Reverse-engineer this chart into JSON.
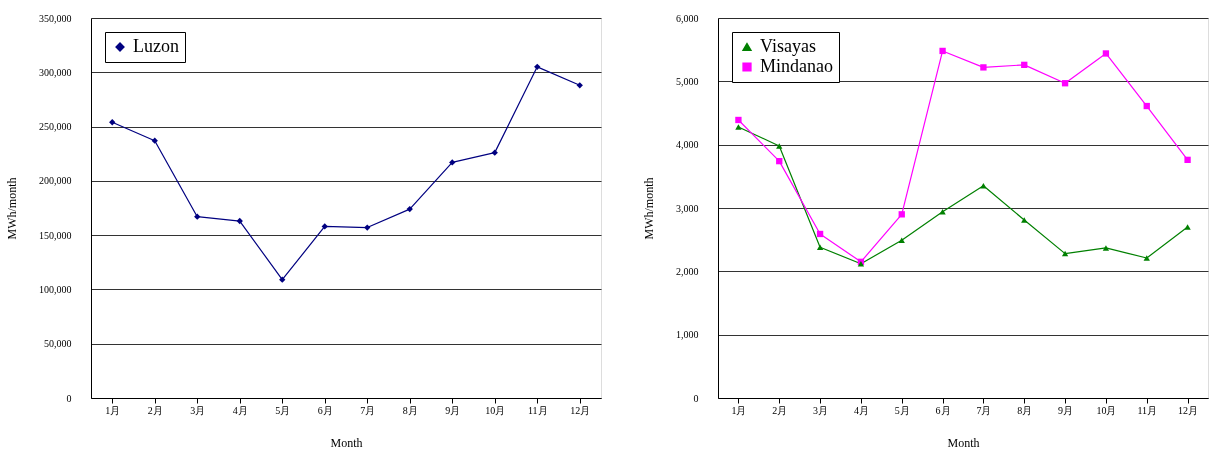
{
  "chart_data": [
    {
      "type": "line",
      "xlabel": "Month",
      "ylabel": "MWh/month",
      "categories": [
        "1月",
        "2月",
        "3月",
        "4月",
        "5月",
        "6月",
        "7月",
        "8月",
        "9月",
        "10月",
        "11月",
        "12月"
      ],
      "series": [
        {
          "name": "Luzon",
          "color": "#000080",
          "marker": "diamond",
          "values": [
            254000,
            237000,
            167000,
            163000,
            109000,
            158000,
            157000,
            174000,
            217000,
            226000,
            305000,
            288000
          ]
        }
      ],
      "ylim": [
        0,
        350000
      ],
      "yticks": [
        0,
        {
          "value": 50000,
          "label": "50,000"
        },
        {
          "value": 100000,
          "label": "100,000"
        },
        {
          "value": 150000,
          "label": "150,000"
        },
        {
          "value": 200000,
          "label": "200,000"
        },
        {
          "value": 250000,
          "label": "250,000"
        },
        {
          "value": 300000,
          "label": "300,000"
        },
        {
          "value": 350000,
          "label": "350,000"
        }
      ],
      "grid": "y",
      "legend": "top left",
      "line_style": "solid"
    },
    {
      "type": "line",
      "xlabel": "Month",
      "ylabel": "MWh/month",
      "categories": [
        "1月",
        "2月",
        "3月",
        "4月",
        "5月",
        "6月",
        "7月",
        "8月",
        "9月",
        "10月",
        "11月",
        "12月"
      ],
      "series": [
        {
          "name": "Visayas",
          "color": "#008000",
          "marker": "triangle",
          "values": [
            4280,
            3980,
            2380,
            2120,
            2490,
            2940,
            3350,
            2810,
            2280,
            2370,
            2210,
            2700
          ]
        },
        {
          "name": "Mindanao",
          "color": "#ff00ff",
          "marker": "square",
          "values": [
            4390,
            3740,
            2590,
            2150,
            2900,
            5480,
            5220,
            5260,
            4970,
            5440,
            4610,
            3760
          ]
        }
      ],
      "ylim": [
        0,
        6000
      ],
      "yticks": [
        0,
        {
          "value": 1000,
          "label": "1,000"
        },
        {
          "value": 2000,
          "label": "2,000"
        },
        {
          "value": 3000,
          "label": "3,000"
        },
        {
          "value": 4000,
          "label": "4,000"
        },
        {
          "value": 5000,
          "label": "5,000"
        },
        {
          "value": 6000,
          "label": "6,000"
        }
      ],
      "grid": "y",
      "legend": "top left",
      "line_style": "solid"
    }
  ]
}
